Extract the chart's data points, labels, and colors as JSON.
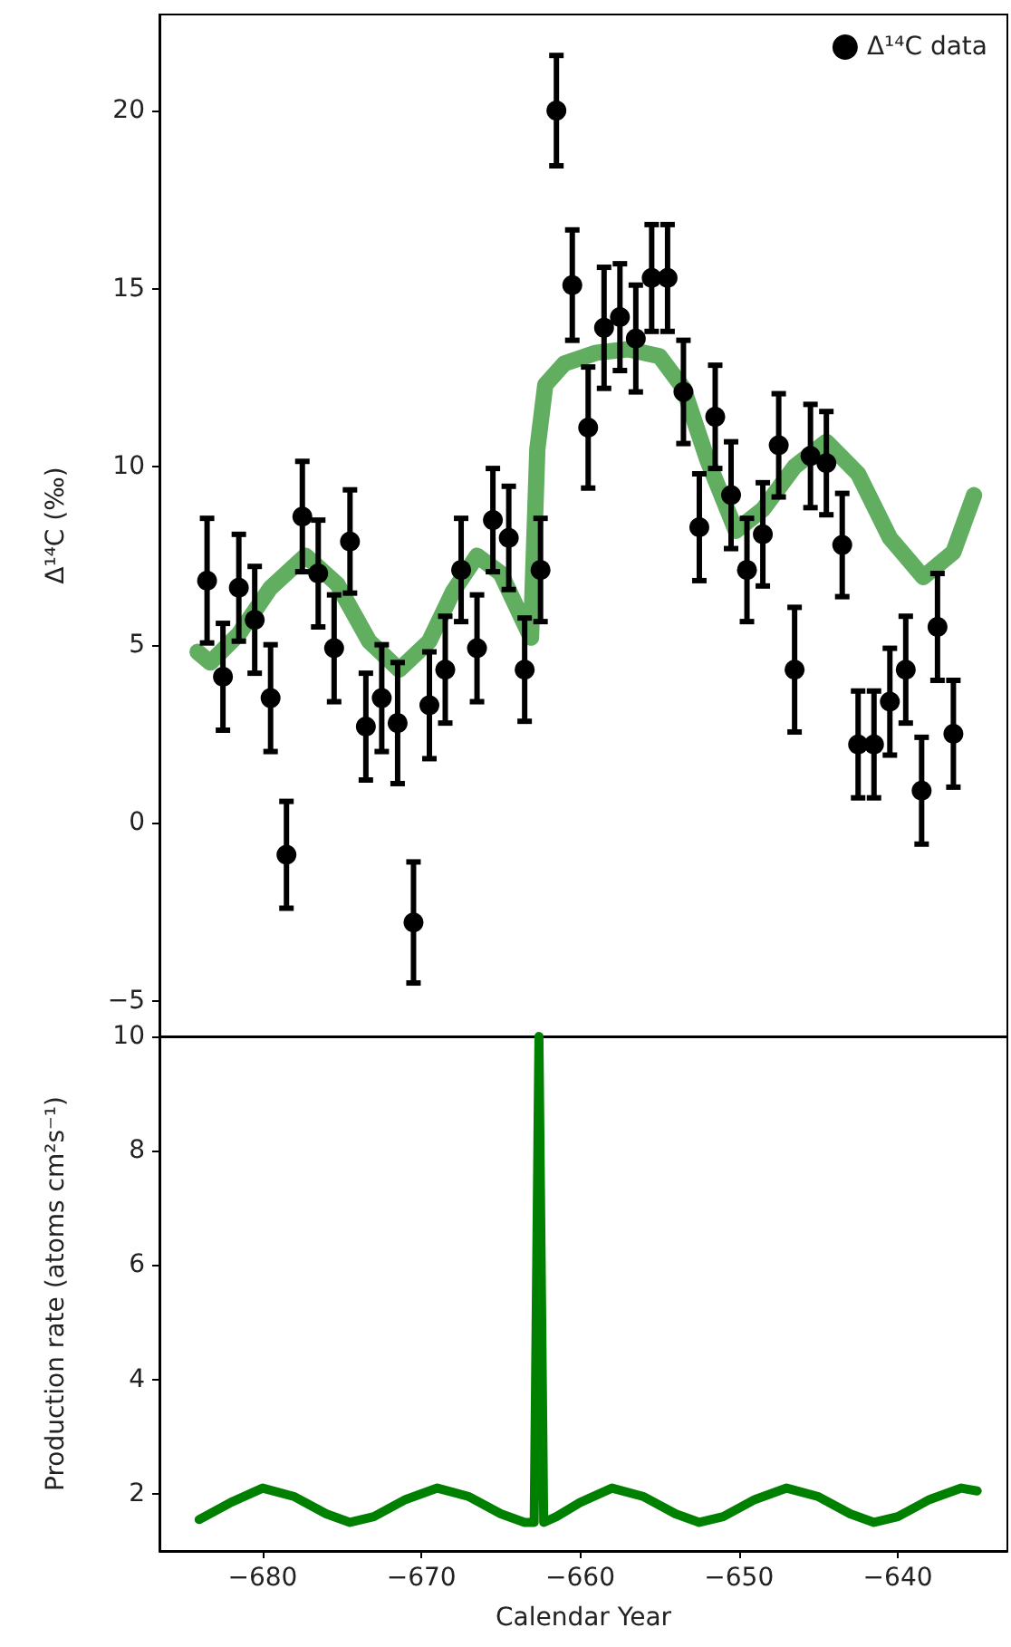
{
  "chart_data": [
    {
      "type": "scatter",
      "ylabel": "Δ¹⁴C (‰)",
      "xlim": [
        -686.5,
        -633.1
      ],
      "ylim": [
        -6,
        22.7
      ],
      "yticks": [
        -5,
        0,
        5,
        10,
        15,
        20
      ],
      "tick_labels": "y",
      "legend": "top right",
      "grid": false,
      "series": [
        {
          "type": "line",
          "color": "#3a9a3a",
          "marker": "none",
          "line_style": "solid",
          "x": [
            -684.1,
            -683.3,
            -681.5,
            -679.5,
            -677.3,
            -675.3,
            -673.3,
            -671.4,
            -669.5,
            -668,
            -666.5,
            -665,
            -663.1,
            -662.7,
            -662.2,
            -661,
            -659,
            -657,
            -655,
            -653.5,
            -652,
            -650.2,
            -648.5,
            -646.5,
            -644.5,
            -642.5,
            -640.5,
            -638.4,
            -636.5,
            -635.2
          ],
          "values": [
            4.8,
            4.5,
            5.3,
            6.6,
            7.5,
            6.7,
            5.1,
            4.3,
            5.1,
            6.5,
            7.5,
            7.0,
            5.2,
            10.5,
            12.3,
            12.9,
            13.2,
            13.3,
            13.1,
            12.2,
            10.2,
            8.2,
            8.8,
            10.0,
            10.7,
            9.8,
            8.0,
            6.9,
            7.6,
            9.2
          ]
        },
        {
          "name": "Δ¹⁴C data",
          "color": "#000000",
          "marker": "circle",
          "x": [
            -683.5,
            -682.5,
            -681.5,
            -680.5,
            -679.5,
            -678.5,
            -677.5,
            -676.5,
            -675.5,
            -674.5,
            -673.5,
            -672.5,
            -671.5,
            -670.5,
            -669.5,
            -668.5,
            -667.5,
            -666.5,
            -665.5,
            -664.5,
            -663.5,
            -662.5,
            -661.5,
            -660.5,
            -659.5,
            -658.5,
            -657.5,
            -656.5,
            -655.5,
            -654.5,
            -653.5,
            -652.5,
            -651.5,
            -650.5,
            -649.5,
            -648.5,
            -647.5,
            -646.5,
            -645.5,
            -644.5,
            -643.5,
            -642.5,
            -641.5,
            -640.5,
            -639.5,
            -638.5,
            -637.5,
            -636.5
          ],
          "values": [
            6.8,
            4.1,
            6.6,
            5.7,
            3.5,
            -0.9,
            8.6,
            7.0,
            4.9,
            7.9,
            2.7,
            3.5,
            2.8,
            -2.8,
            3.3,
            4.3,
            7.1,
            4.9,
            8.5,
            8.0,
            4.3,
            7.1,
            20.0,
            15.1,
            11.1,
            13.9,
            14.2,
            13.6,
            15.3,
            15.3,
            12.1,
            8.3,
            11.4,
            9.2,
            7.1,
            8.1,
            10.6,
            4.3,
            10.3,
            10.1,
            7.8,
            2.2,
            2.2,
            3.4,
            4.3,
            0.9,
            5.5,
            2.5
          ],
          "errors": [
            1.75,
            1.5,
            1.5,
            1.5,
            1.5,
            1.5,
            1.55,
            1.5,
            1.5,
            1.45,
            1.5,
            1.5,
            1.7,
            1.7,
            1.5,
            1.5,
            1.45,
            1.5,
            1.45,
            1.45,
            1.45,
            1.45,
            1.55,
            1.55,
            1.7,
            1.7,
            1.5,
            1.5,
            1.5,
            1.5,
            1.45,
            1.5,
            1.45,
            1.5,
            1.45,
            1.45,
            1.45,
            1.75,
            1.45,
            1.45,
            1.45,
            1.5,
            1.5,
            1.5,
            1.5,
            1.5,
            1.5,
            1.5
          ]
        }
      ]
    },
    {
      "type": "line",
      "xlabel": "Calendar Year",
      "ylabel": "Production rate (atoms cm²s⁻¹)",
      "xlim": [
        -686.5,
        -633.1
      ],
      "xticks": [
        -680,
        -670,
        -660,
        -650,
        -640
      ],
      "ylim": [
        1,
        10
      ],
      "yticks": [
        2,
        4,
        6,
        8,
        10
      ],
      "grid": false,
      "series": [
        {
          "color": "#008000",
          "marker": "none",
          "line_style": "solid",
          "x": [
            -684,
            -682,
            -680,
            -678,
            -676,
            -674.5,
            -673,
            -671,
            -669,
            -667,
            -665,
            -663.5,
            -662.9,
            -662.6,
            -662.3,
            -661.5,
            -660,
            -658,
            -656,
            -654,
            -652.5,
            -651,
            -649,
            -647,
            -645,
            -643,
            -641.5,
            -640,
            -638,
            -636,
            -635
          ],
          "values": [
            1.55,
            1.85,
            2.1,
            1.95,
            1.65,
            1.5,
            1.6,
            1.9,
            2.1,
            1.95,
            1.65,
            1.5,
            1.5,
            10,
            1.5,
            1.6,
            1.85,
            2.1,
            1.95,
            1.65,
            1.5,
            1.6,
            1.9,
            2.1,
            1.95,
            1.65,
            1.5,
            1.6,
            1.9,
            2.1,
            2.05
          ]
        }
      ]
    }
  ]
}
